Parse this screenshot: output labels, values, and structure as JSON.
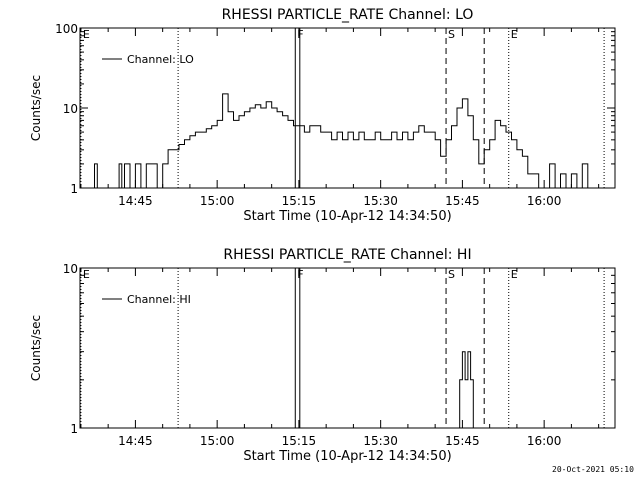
{
  "footer": {
    "timestamp": "20-Oct-2021 05:10"
  },
  "chart_data": [
    {
      "type": "line",
      "title": "RHESSI PARTICLE_RATE Channel: LO",
      "xlabel": "Start Time (10-Apr-12 14:34:50)",
      "ylabel": "Counts/sec",
      "y_scale": "log",
      "ylim": [
        1,
        100
      ],
      "xlim": [
        "14:34:50",
        "16:13:00"
      ],
      "x_ticks": [
        "14:45",
        "15:00",
        "15:15",
        "15:30",
        "15:45",
        "16:00"
      ],
      "y_ticks": [
        "1",
        "10",
        "100"
      ],
      "legend": {
        "position": "top-left",
        "entries": [
          "Channel: LO"
        ]
      },
      "markers": [
        {
          "label": "E",
          "time": "14:35:00",
          "style": "dotted"
        },
        {
          "label": "",
          "time": "14:52:50",
          "style": "dotted"
        },
        {
          "label": "F",
          "time": "15:14:20",
          "style": "solid"
        },
        {
          "label": "",
          "time": "15:15:10",
          "style": "solid"
        },
        {
          "label": "S",
          "time": "15:42:00",
          "style": "dashed"
        },
        {
          "label": "",
          "time": "15:49:00",
          "style": "dashed"
        },
        {
          "label": "E",
          "time": "15:53:30",
          "style": "dotted"
        },
        {
          "label": "",
          "time": "16:11:00",
          "style": "dotted"
        }
      ],
      "series": [
        {
          "name": "Channel: LO",
          "x": [
            "14:35",
            "14:37",
            "14:37:30",
            "14:38",
            "14:41",
            "14:42",
            "14:42:30",
            "14:43",
            "14:44",
            "14:45",
            "14:46",
            "14:47",
            "14:48",
            "14:49",
            "14:50",
            "14:51",
            "14:52",
            "14:53",
            "14:54",
            "14:55",
            "14:56",
            "14:57",
            "14:58",
            "14:59",
            "15:00",
            "15:01",
            "15:02",
            "15:03",
            "15:04",
            "15:05",
            "15:06",
            "15:07",
            "15:08",
            "15:09",
            "15:10",
            "15:11",
            "15:12",
            "15:13",
            "15:14",
            "15:15",
            "15:16",
            "15:17",
            "15:18",
            "15:19",
            "15:20",
            "15:21",
            "15:22",
            "15:23",
            "15:24",
            "15:25",
            "15:26",
            "15:27",
            "15:28",
            "15:29",
            "15:30",
            "15:31",
            "15:32",
            "15:33",
            "15:34",
            "15:35",
            "15:36",
            "15:37",
            "15:38",
            "15:39",
            "15:40",
            "15:41",
            "15:42",
            "15:43",
            "15:44",
            "15:45",
            "15:46",
            "15:47",
            "15:48",
            "15:49",
            "15:50",
            "15:51",
            "15:52",
            "15:53",
            "15:54",
            "15:55",
            "15:56",
            "15:57",
            "15:58",
            "15:59",
            "16:00",
            "16:01",
            "16:02",
            "16:03",
            "16:04",
            "16:05",
            "16:06",
            "16:07",
            "16:08",
            "16:09",
            "16:10"
          ],
          "y": [
            1,
            1,
            2,
            1,
            1,
            2,
            1,
            2,
            1,
            2,
            1,
            2,
            2,
            1,
            2,
            3,
            3,
            3.5,
            4,
            4.5,
            5,
            5,
            5.5,
            6,
            7,
            15,
            9,
            7,
            8,
            9,
            10,
            11,
            10,
            12,
            10,
            9,
            8,
            7,
            6,
            6,
            5,
            6,
            6,
            5,
            5,
            4,
            5,
            4,
            5,
            4,
            5,
            4,
            4,
            5,
            4,
            4,
            5,
            4,
            5,
            4,
            5,
            6,
            5,
            5,
            4,
            2.5,
            4,
            6,
            10,
            13,
            8,
            4,
            2,
            3,
            4,
            7,
            6,
            5,
            4,
            3,
            2.5,
            1.5,
            1.5,
            1,
            1,
            2,
            1,
            1.5,
            1,
            1.5,
            1,
            2,
            1,
            1,
            1
          ]
        }
      ]
    },
    {
      "type": "line",
      "title": "RHESSI PARTICLE_RATE Channel: HI",
      "xlabel": "Start Time (10-Apr-12 14:34:50)",
      "ylabel": "Counts/sec",
      "y_scale": "log",
      "ylim": [
        1,
        10
      ],
      "xlim": [
        "14:34:50",
        "16:13:00"
      ],
      "x_ticks": [
        "14:45",
        "15:00",
        "15:15",
        "15:30",
        "15:45",
        "16:00"
      ],
      "y_ticks": [
        "1",
        "10"
      ],
      "legend": {
        "position": "top-left",
        "entries": [
          "Channel: HI"
        ]
      },
      "markers": [
        {
          "label": "E",
          "time": "14:35:00",
          "style": "dotted"
        },
        {
          "label": "",
          "time": "14:52:50",
          "style": "dotted"
        },
        {
          "label": "F",
          "time": "15:14:20",
          "style": "solid"
        },
        {
          "label": "",
          "time": "15:15:10",
          "style": "solid"
        },
        {
          "label": "S",
          "time": "15:42:00",
          "style": "dashed"
        },
        {
          "label": "",
          "time": "15:49:00",
          "style": "dashed"
        },
        {
          "label": "E",
          "time": "15:53:30",
          "style": "dotted"
        },
        {
          "label": "",
          "time": "16:11:00",
          "style": "dotted"
        }
      ],
      "series": [
        {
          "name": "Channel: HI",
          "x": [
            "15:44",
            "15:44:30",
            "15:45",
            "15:45:30",
            "15:46",
            "15:46:30",
            "15:47"
          ],
          "y": [
            1,
            2,
            3,
            2,
            3,
            2,
            1
          ]
        }
      ]
    }
  ]
}
